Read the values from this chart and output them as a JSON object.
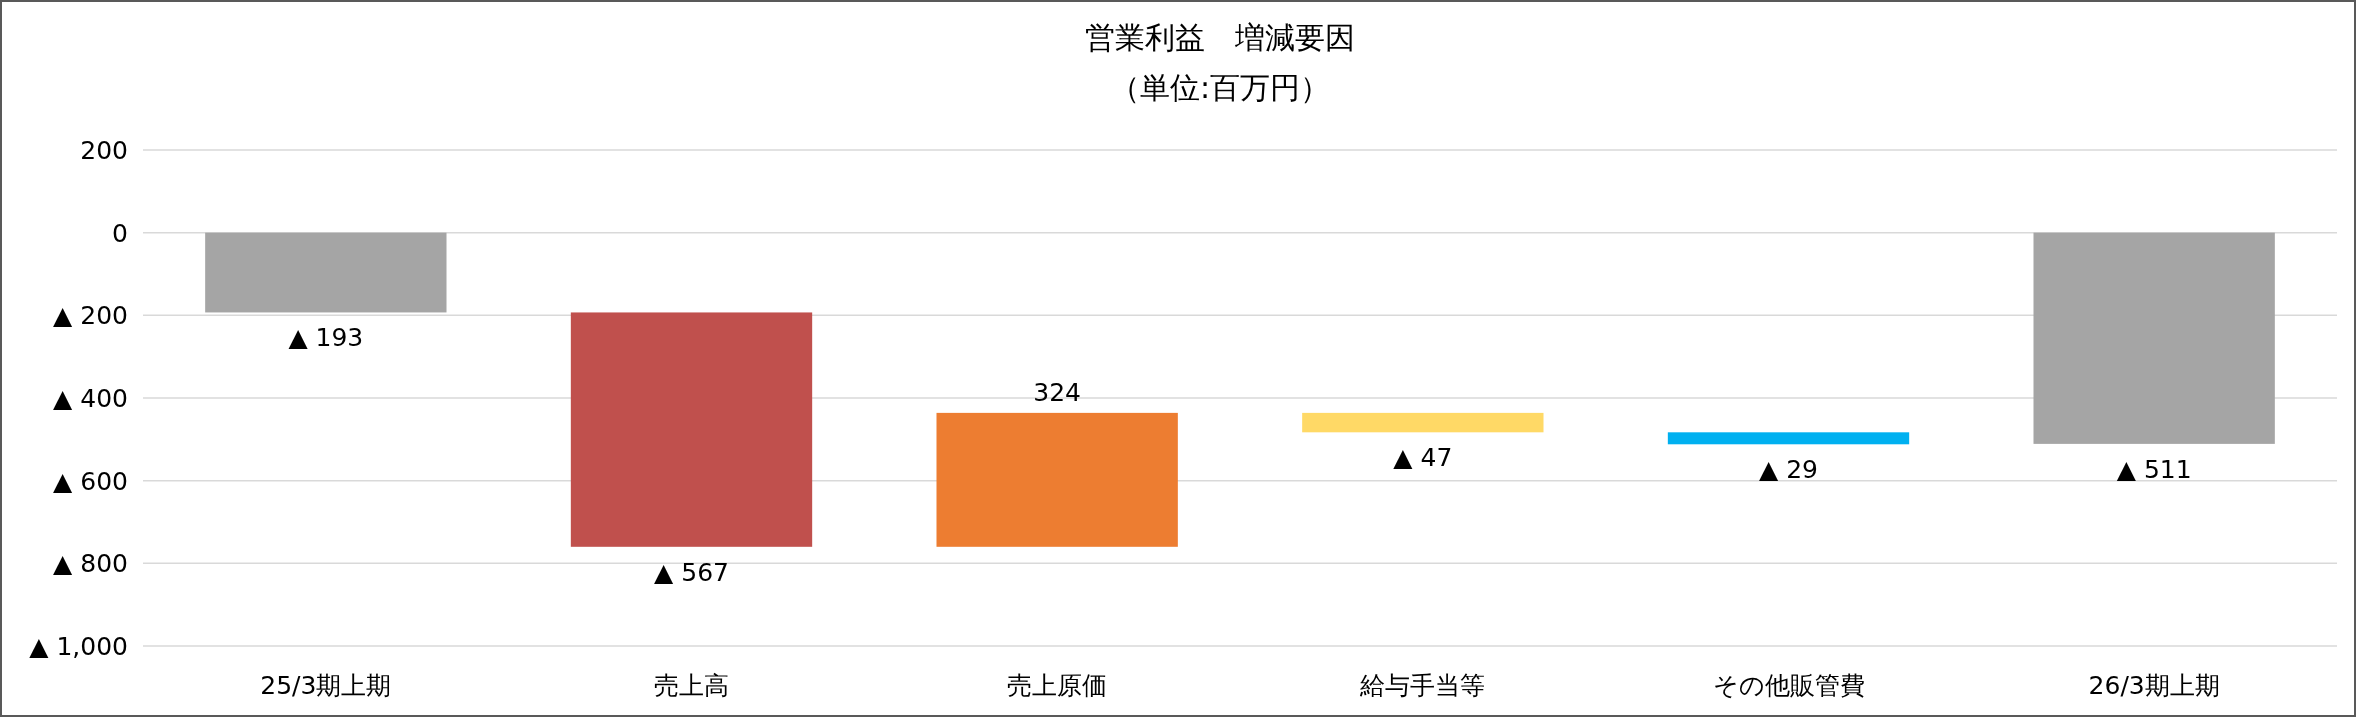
{
  "chart_data": {
    "type": "bar",
    "title": "営業利益　増減要因",
    "subtitle": "（単位:百万円）",
    "categories": [
      "25/3期上期",
      "売上高",
      "売上原価",
      "給与手当等",
      "その他販管費",
      "26/3期上期"
    ],
    "values": [
      -193,
      -567,
      324,
      -47,
      -29,
      -511
    ],
    "base": [
      0,
      -193,
      -760,
      -436,
      -483,
      0
    ],
    "colors": [
      "#a5a5a5",
      "#c0504d",
      "#ed7d31",
      "#ffd966",
      "#00b0f0",
      "#a5a5a5"
    ],
    "value_labels": [
      "▲ 193",
      "▲ 567",
      "324",
      "▲ 47",
      "▲ 29",
      "▲ 511"
    ],
    "ylim": [
      -1000,
      200
    ],
    "yticks": [
      {
        "value": 200,
        "label": "200"
      },
      {
        "value": 0,
        "label": "0"
      },
      {
        "value": -200,
        "label": "▲ 200"
      },
      {
        "value": -400,
        "label": "▲ 400"
      },
      {
        "value": -600,
        "label": "▲ 600"
      },
      {
        "value": -800,
        "label": "▲ 800"
      },
      {
        "value": -1000,
        "label": "▲ 1,000"
      }
    ],
    "grid": "y"
  }
}
